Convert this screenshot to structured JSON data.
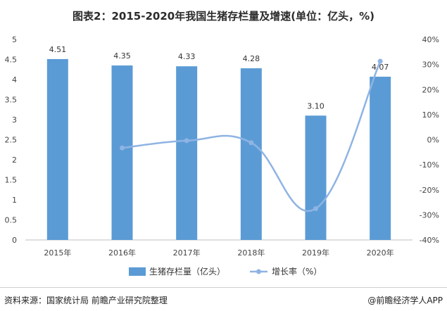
{
  "title": "图表2：2015-2020年我国生猪存栏量及增速(单位：亿头，%)",
  "footer": {
    "source": "资料来源：国家统计局 前瞻产业研究院整理",
    "brand": "@前瞻经济学人APP"
  },
  "colors": {
    "bar": "#5b9bd5",
    "line": "#8fb4e3"
  },
  "chart_data": {
    "type": "bar",
    "categories": [
      "2015年",
      "2016年",
      "2017年",
      "2018年",
      "2019年",
      "2020年"
    ],
    "series": [
      {
        "name": "生猪存栏量（亿头）",
        "type": "bar",
        "axis": "left",
        "values": [
          4.51,
          4.35,
          4.33,
          4.28,
          3.1,
          4.07
        ],
        "labels": [
          "4.51",
          "4.35",
          "4.33",
          "4.28",
          "3.10",
          "4.07"
        ]
      },
      {
        "name": "增长率（%）",
        "type": "line",
        "axis": "right",
        "values": [
          null,
          -3.3,
          -0.4,
          -1.2,
          -27.5,
          31.3
        ]
      }
    ],
    "y_left": {
      "min": 0,
      "max": 5,
      "ticks": [
        "0",
        "0.5",
        "1",
        "1.5",
        "2",
        "2.5",
        "3",
        "3.5",
        "4",
        "4.5",
        "5"
      ]
    },
    "y_right": {
      "min": -40,
      "max": 40,
      "ticks": [
        "-40%",
        "-30%",
        "-20%",
        "-10%",
        "0%",
        "10%",
        "20%",
        "30%",
        "40%"
      ]
    },
    "grid": false,
    "legend_position": "bottom"
  }
}
